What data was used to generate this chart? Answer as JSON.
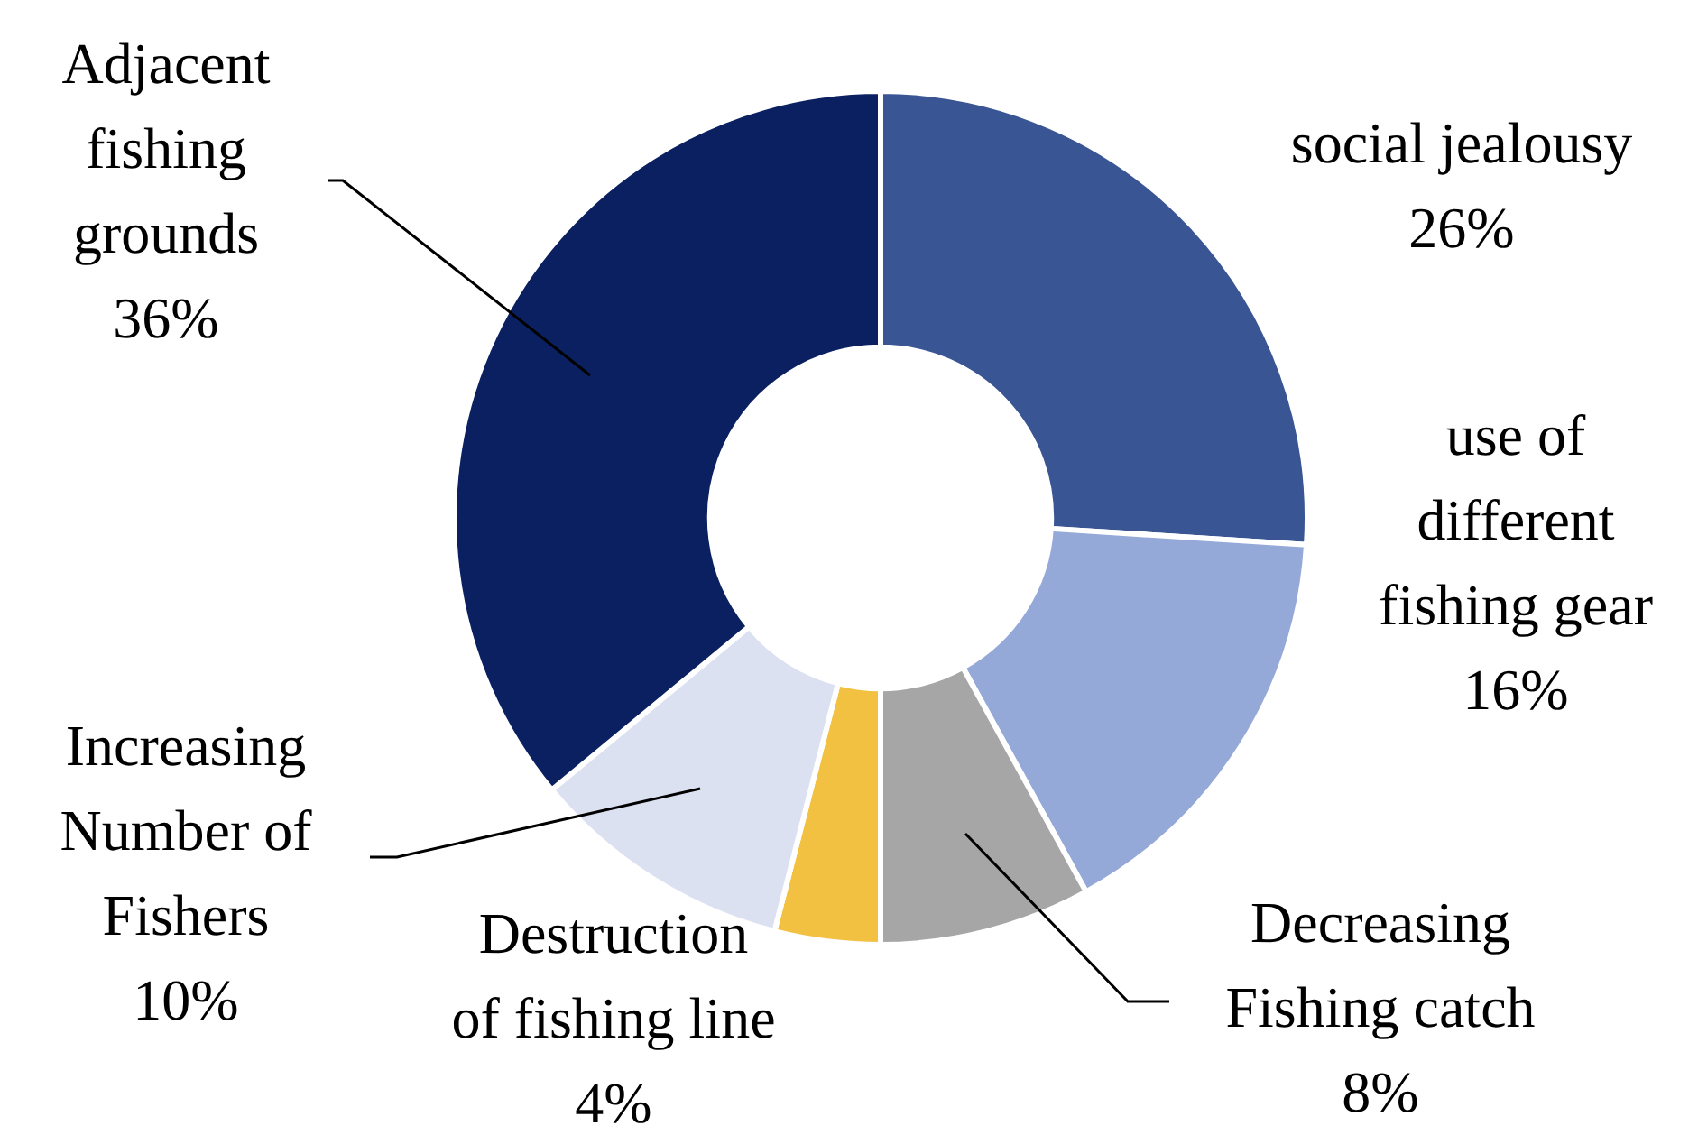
{
  "chart_data": {
    "type": "donut",
    "categories": [
      "social jealousy",
      "use of different fishing gear",
      "Decreasing Fishing catch",
      "Destruction of fishing line",
      "Increasing Number of Fishers",
      "Adjacent fishing grounds"
    ],
    "values": [
      26,
      16,
      8,
      4,
      10,
      36
    ],
    "colors": [
      "#3a5594",
      "#95a9d8",
      "#a6a6a6",
      "#f3c142",
      "#dbe1f1",
      "#0b2060"
    ],
    "value_labels": [
      "26%",
      "16%",
      "8%",
      "4%",
      "10%",
      "36%"
    ],
    "legend": false
  }
}
